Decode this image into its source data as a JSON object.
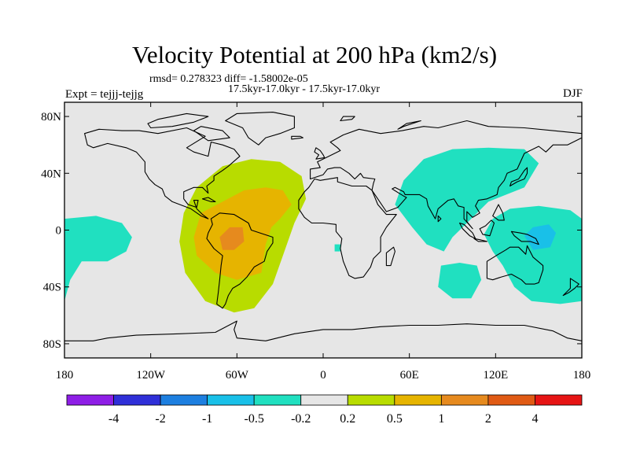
{
  "header": {
    "title": "Velocity Potential at 200 hPa (km2/s)",
    "stats": "rmsd= 0.278323 diff= -1.58002e-05",
    "subtitle": "17.5kyr-17.0kyr - 17.5kyr-17.0kyr",
    "experiment": "Expt = tejjj-tejjg",
    "season": "DJF"
  },
  "chart_data": {
    "type": "heatmap",
    "projection": "cylindrical-equidistant",
    "title": "Velocity Potential at 200 hPa (km2/s)",
    "xlim": [
      -180,
      180
    ],
    "ylim": [
      -90,
      90
    ],
    "x_ticks": [
      {
        "value": -180,
        "label": "180"
      },
      {
        "value": -120,
        "label": "120W"
      },
      {
        "value": -60,
        "label": "60W"
      },
      {
        "value": 0,
        "label": "0"
      },
      {
        "value": 60,
        "label": "60E"
      },
      {
        "value": 120,
        "label": "120E"
      },
      {
        "value": 180,
        "label": "180"
      }
    ],
    "y_ticks": [
      {
        "value": 80,
        "label": "80N"
      },
      {
        "value": 40,
        "label": "40N"
      },
      {
        "value": 0,
        "label": "0"
      },
      {
        "value": -40,
        "label": "40S"
      },
      {
        "value": -80,
        "label": "80S"
      }
    ],
    "levels": [
      -4,
      -2,
      -1,
      -0.5,
      -0.2,
      0.2,
      0.5,
      1,
      2,
      4
    ],
    "colorbar_labels": [
      "-4",
      "-2",
      "-1",
      "-0.5",
      "-0.2",
      "0.2",
      "0.5",
      "1",
      "2",
      "4"
    ],
    "colors": [
      "#8e1ee6",
      "#2f2fd8",
      "#1d7fe0",
      "#19c0e8",
      "#20e0c0",
      "#e6e6e6",
      "#b8dc00",
      "#e6b400",
      "#e68a1e",
      "#e05a14",
      "#e61414"
    ],
    "background_color": "#e6e6e6",
    "regions": [
      {
        "name": "atlantic-sa-positive",
        "band": "0.2 to 0.5",
        "color": "#b8dc00",
        "points": [
          [
            -100,
            -8
          ],
          [
            -97,
            12
          ],
          [
            -88,
            30
          ],
          [
            -70,
            45
          ],
          [
            -50,
            50
          ],
          [
            -30,
            48
          ],
          [
            -15,
            38
          ],
          [
            -12,
            22
          ],
          [
            -20,
            5
          ],
          [
            -28,
            -18
          ],
          [
            -35,
            -38
          ],
          [
            -48,
            -55
          ],
          [
            -62,
            -58
          ],
          [
            -82,
            -50
          ],
          [
            -96,
            -30
          ]
        ]
      },
      {
        "name": "atlantic-sa-core",
        "band": "0.5 to 1",
        "color": "#e6b400",
        "points": [
          [
            -90,
            -5
          ],
          [
            -85,
            12
          ],
          [
            -70,
            20
          ],
          [
            -55,
            28
          ],
          [
            -40,
            30
          ],
          [
            -28,
            28
          ],
          [
            -22,
            18
          ],
          [
            -30,
            8
          ],
          [
            -36,
            2
          ],
          [
            -40,
            -10
          ],
          [
            -43,
            -30
          ],
          [
            -60,
            -35
          ],
          [
            -75,
            -30
          ],
          [
            -88,
            -18
          ]
        ]
      },
      {
        "name": "amazon-maximum",
        "band": "1 to 2",
        "color": "#e68a1e",
        "points": [
          [
            -70,
            -14
          ],
          [
            -72,
            -5
          ],
          [
            -65,
            2
          ],
          [
            -56,
            2
          ],
          [
            -55,
            -8
          ],
          [
            -62,
            -14
          ]
        ]
      },
      {
        "name": "east-pacific-negative",
        "band": "-0.5 to -0.2",
        "color": "#20e0c0",
        "points": [
          [
            -180,
            8
          ],
          [
            -158,
            10
          ],
          [
            -140,
            5
          ],
          [
            -133,
            -5
          ],
          [
            -137,
            -15
          ],
          [
            -150,
            -22
          ],
          [
            -168,
            -22
          ],
          [
            -176,
            -35
          ],
          [
            -180,
            -50
          ]
        ]
      },
      {
        "name": "asia-negative",
        "band": "-0.5 to -0.2",
        "color": "#20e0c0",
        "points": [
          [
            50,
            18
          ],
          [
            56,
            35
          ],
          [
            70,
            50
          ],
          [
            90,
            57
          ],
          [
            115,
            58
          ],
          [
            140,
            57
          ],
          [
            150,
            47
          ],
          [
            140,
            30
          ],
          [
            115,
            20
          ],
          [
            103,
            8
          ],
          [
            90,
            -5
          ],
          [
            84,
            -15
          ],
          [
            72,
            -10
          ],
          [
            62,
            2
          ]
        ]
      },
      {
        "name": "maritime-continent-negative",
        "band": "-0.5 to -0.2",
        "color": "#20e0c0",
        "points": [
          [
            130,
            15
          ],
          [
            150,
            17
          ],
          [
            172,
            14
          ],
          [
            180,
            8
          ],
          [
            180,
            -50
          ],
          [
            165,
            -52
          ],
          [
            145,
            -50
          ],
          [
            133,
            -40
          ],
          [
            125,
            -25
          ],
          [
            118,
            -15
          ],
          [
            112,
            -3
          ],
          [
            118,
            8
          ]
        ]
      },
      {
        "name": "indian-ocean-negative",
        "band": "-0.5 to -0.2",
        "color": "#20e0c0",
        "points": [
          [
            82,
            -25
          ],
          [
            95,
            -23
          ],
          [
            107,
            -25
          ],
          [
            110,
            -35
          ],
          [
            103,
            -48
          ],
          [
            90,
            -48
          ],
          [
            80,
            -40
          ]
        ]
      },
      {
        "name": "west-pacific-core",
        "band": "-1 to -0.5",
        "color": "#19c0e8",
        "points": [
          [
            140,
            -4
          ],
          [
            146,
            2
          ],
          [
            157,
            4
          ],
          [
            162,
            -2
          ],
          [
            158,
            -12
          ],
          [
            146,
            -14
          ]
        ]
      },
      {
        "name": "atlantic-islet-negative",
        "band": "-0.5 to -0.2",
        "color": "#20e0c0",
        "points": [
          [
            8,
            -10
          ],
          [
            12,
            -10
          ],
          [
            12,
            -15
          ],
          [
            8,
            -15
          ]
        ]
      }
    ]
  }
}
